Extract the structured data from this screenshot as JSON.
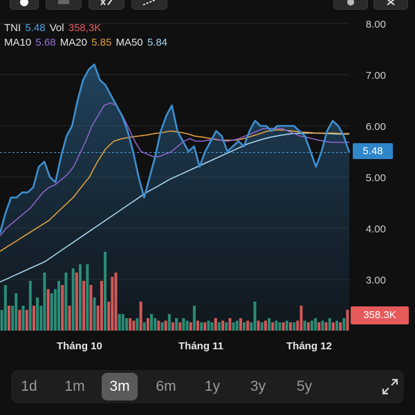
{
  "legend": {
    "ticker": "TNI",
    "price": "5.48",
    "vol_label": "Vol",
    "vol_value": "358,3K",
    "ma10_label": "MA10",
    "ma10_value": "5.68",
    "ma20_label": "MA20",
    "ma20_value": "5.85",
    "ma50_label": "MA50",
    "ma50_value": "5.84"
  },
  "price_tag": "5.48",
  "volume_tag": "358.3K",
  "time_ranges": [
    {
      "label": "1d",
      "active": false
    },
    {
      "label": "1m",
      "active": false
    },
    {
      "label": "3m",
      "active": true
    },
    {
      "label": "6m",
      "active": false
    },
    {
      "label": "1y",
      "active": false
    },
    {
      "label": "3y",
      "active": false
    },
    {
      "label": "5y",
      "active": false
    }
  ],
  "colors": {
    "price_line": "#3d8fd1",
    "ma10": "#8a63c9",
    "ma20": "#e0a040",
    "ma50": "#a9d4ee",
    "vol_up": "#2a8c76",
    "vol_down": "#d35858"
  },
  "chart_data": {
    "type": "line",
    "y_ticks": [
      "8.00",
      "7.00",
      "6.00",
      "5.00",
      "4.00",
      "3.00"
    ],
    "ylim": [
      2.0,
      8.25
    ],
    "x_labels": [
      "Tháng 10",
      "Tháng 11",
      "Tháng 12"
    ],
    "series": [
      {
        "name": "TNI",
        "values": [
          3.9,
          4.3,
          4.6,
          4.6,
          4.7,
          4.7,
          4.8,
          5.2,
          5.3,
          5.0,
          4.9,
          5.4,
          5.8,
          6.0,
          6.5,
          6.9,
          7.1,
          7.2,
          6.9,
          6.8,
          6.6,
          6.4,
          6.2,
          5.9,
          5.5,
          5.0,
          4.6,
          5.0,
          5.4,
          5.9,
          6.2,
          6.4,
          5.9,
          5.7,
          5.5,
          5.6,
          5.2,
          5.5,
          5.7,
          5.9,
          5.8,
          5.5,
          5.6,
          5.7,
          5.6,
          5.9,
          6.1,
          6.0,
          6.0,
          5.9,
          6.0,
          6.0,
          6.0,
          6.0,
          5.9,
          5.8,
          5.5,
          5.2,
          5.5,
          5.9,
          6.1,
          6.0,
          5.8,
          5.48
        ]
      },
      {
        "name": "MA10",
        "values": [
          3.85,
          4.0,
          4.1,
          4.2,
          4.3,
          4.4,
          4.55,
          4.7,
          4.8,
          4.85,
          4.95,
          5.05,
          5.2,
          5.45,
          5.7,
          6.0,
          6.2,
          6.4,
          6.45,
          6.4,
          6.2,
          5.95,
          5.7,
          5.5,
          5.45,
          5.4,
          5.4,
          5.45,
          5.5,
          5.6,
          5.7,
          5.75,
          5.7,
          5.7,
          5.72,
          5.75,
          5.72,
          5.7,
          5.72,
          5.75,
          5.8,
          5.85,
          5.9,
          5.95,
          5.95,
          5.95,
          5.95,
          5.9,
          5.85,
          5.8,
          5.78,
          5.75,
          5.72,
          5.7,
          5.68,
          5.68,
          5.68,
          5.68
        ]
      },
      {
        "name": "MA20",
        "values": [
          3.55,
          3.65,
          3.75,
          3.85,
          3.95,
          4.05,
          4.15,
          4.3,
          4.45,
          4.6,
          4.8,
          5.0,
          5.3,
          5.55,
          5.7,
          5.75,
          5.78,
          5.8,
          5.82,
          5.85,
          5.87,
          5.9,
          5.88,
          5.85,
          5.8,
          5.78,
          5.75,
          5.72,
          5.72,
          5.72,
          5.75,
          5.8,
          5.85,
          5.9,
          5.92,
          5.92,
          5.9,
          5.88,
          5.87,
          5.86,
          5.86,
          5.86,
          5.85,
          5.85
        ]
      },
      {
        "name": "MA50",
        "values": [
          2.95,
          3.05,
          3.15,
          3.25,
          3.35,
          3.5,
          3.65,
          3.8,
          3.95,
          4.1,
          4.25,
          4.4,
          4.55,
          4.7,
          4.82,
          4.95,
          5.05,
          5.15,
          5.25,
          5.35,
          5.45,
          5.55,
          5.65,
          5.72,
          5.78,
          5.82,
          5.85,
          5.86,
          5.86,
          5.85,
          5.84,
          5.84
        ]
      }
    ],
    "volume": {
      "values": [
        0.25,
        0.55,
        0.3,
        0.3,
        0.45,
        0.25,
        0.3,
        0.25,
        0.6,
        0.3,
        0.4,
        0.3,
        0.7,
        0.5,
        0.45,
        0.5,
        0.6,
        0.55,
        0.7,
        0.3,
        0.75,
        0.7,
        0.8,
        0.6,
        0.8,
        0.55,
        0.4,
        0.3,
        0.6,
        0.95,
        0.35,
        0.65,
        0.7,
        0.2,
        0.2,
        0.15,
        0.15,
        0.12,
        0.15,
        0.35,
        0.1,
        0.15,
        0.2,
        0.15,
        0.12,
        0.1,
        0.12,
        0.2,
        0.1,
        0.15,
        0.1,
        0.15,
        0.12,
        0.1,
        0.3,
        0.12,
        0.1,
        0.1,
        0.12,
        0.1,
        0.15,
        0.1,
        0.12,
        0.1,
        0.15,
        0.1,
        0.12,
        0.15,
        0.1,
        0.12,
        0.1,
        0.35,
        0.12,
        0.1,
        0.12,
        0.15,
        0.1,
        0.12,
        0.1,
        0.1,
        0.12,
        0.1,
        0.1,
        0.12,
        0.3,
        0.12,
        0.1,
        0.12,
        0.15,
        0.1,
        0.12,
        0.1,
        0.15,
        0.1,
        0.12,
        0.1,
        0.15,
        0.25
      ],
      "up": [
        1,
        1,
        0,
        1,
        1,
        0,
        1,
        0,
        1,
        0,
        1,
        1,
        1,
        0,
        1,
        1,
        1,
        0,
        1,
        0,
        1,
        0,
        1,
        0,
        1,
        0,
        1,
        0,
        0,
        1,
        0,
        0,
        0,
        1,
        1,
        1,
        0,
        0,
        1,
        0,
        1,
        0,
        1,
        1,
        0,
        1,
        0,
        1,
        0,
        1,
        0,
        1,
        1,
        0,
        1,
        0,
        1,
        0,
        1,
        1,
        0,
        1,
        0,
        1,
        0,
        1,
        1,
        0,
        1,
        0,
        1,
        1,
        0,
        1,
        0,
        1,
        0,
        1,
        1,
        0,
        1,
        0,
        1,
        0,
        0,
        1,
        0,
        1,
        1,
        0,
        1,
        0,
        1,
        0,
        1,
        0,
        1,
        0
      ],
      "max_label_value": "358.3K"
    }
  }
}
